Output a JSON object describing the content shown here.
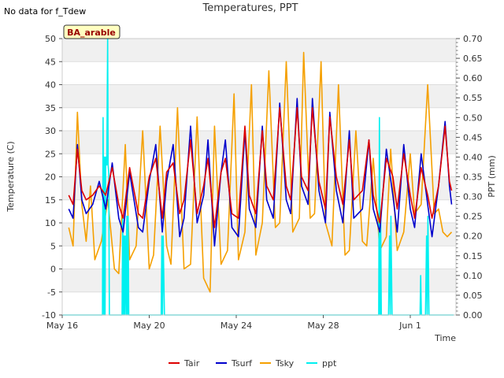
{
  "chart_data": {
    "type": "line",
    "title": "Temperatures, PPT",
    "note": "No data for f_Tdew",
    "site_label": "BA_arable",
    "xlabel": "Time",
    "ylabel_left": "Temperature (C)",
    "ylabel_right": "PPT (mm)",
    "ylim_left": [
      -10,
      50
    ],
    "ylim_right": [
      0.0,
      0.7
    ],
    "yticks_left": [
      "-10",
      "-5",
      "0",
      "5",
      "10",
      "15",
      "20",
      "25",
      "30",
      "35",
      "40",
      "45",
      "50"
    ],
    "yticks_right": [
      "0.00",
      "0.05",
      "0.10",
      "0.15",
      "0.20",
      "0.25",
      "0.30",
      "0.35",
      "0.40",
      "0.45",
      "0.50",
      "0.55",
      "0.60",
      "0.65",
      "0.70"
    ],
    "xticks": [
      {
        "day": 0,
        "label": "May 16"
      },
      {
        "day": 4,
        "label": "May 20"
      },
      {
        "day": 8,
        "label": "May 24"
      },
      {
        "day": 12,
        "label": "May 28"
      },
      {
        "day": 16,
        "label": "Jun 1"
      }
    ],
    "xlim_days": [
      0,
      18.1
    ],
    "grid": "horizontal bands",
    "legend_position": "bottom-center",
    "series": [
      {
        "name": "Tair",
        "color": "#dd0000",
        "axis": "left",
        "x": [
          0.3,
          0.5,
          0.7,
          0.9,
          1.1,
          1.4,
          1.7,
          2.0,
          2.3,
          2.6,
          2.8,
          3.1,
          3.5,
          3.7,
          4.0,
          4.3,
          4.6,
          4.8,
          5.1,
          5.4,
          5.6,
          5.9,
          6.2,
          6.5,
          6.7,
          7.0,
          7.3,
          7.5,
          7.8,
          8.1,
          8.4,
          8.6,
          8.9,
          9.2,
          9.4,
          9.7,
          10.0,
          10.3,
          10.5,
          10.8,
          11.0,
          11.3,
          11.5,
          11.8,
          12.1,
          12.3,
          12.6,
          12.9,
          13.2,
          13.4,
          13.8,
          14.1,
          14.3,
          14.6,
          14.9,
          15.2,
          15.4,
          15.7,
          16.0,
          16.2,
          16.5,
          16.8,
          17.0,
          17.3,
          17.6,
          17.8,
          17.9
        ],
        "y": [
          16,
          14,
          26,
          17,
          15,
          16,
          18,
          16,
          22,
          14,
          11,
          22,
          12,
          11,
          20,
          24,
          11,
          21,
          23,
          12,
          15,
          28,
          12,
          18,
          24,
          9,
          21,
          24,
          12,
          11,
          31,
          16,
          12,
          30,
          18,
          15,
          35,
          18,
          15,
          35,
          20,
          17,
          35,
          19,
          13,
          33,
          20,
          14,
          28,
          15,
          17,
          28,
          16,
          10,
          24,
          20,
          13,
          25,
          16,
          11,
          22,
          16,
          11,
          18,
          31,
          19,
          17
        ]
      },
      {
        "name": "Tsurf",
        "color": "#0000cc",
        "axis": "left",
        "x": [
          0.3,
          0.5,
          0.7,
          0.9,
          1.1,
          1.4,
          1.7,
          2.0,
          2.3,
          2.6,
          2.8,
          3.1,
          3.5,
          3.7,
          4.0,
          4.3,
          4.6,
          4.8,
          5.1,
          5.4,
          5.6,
          5.9,
          6.2,
          6.5,
          6.7,
          7.0,
          7.3,
          7.5,
          7.8,
          8.1,
          8.4,
          8.6,
          8.9,
          9.2,
          9.4,
          9.7,
          10.0,
          10.3,
          10.5,
          10.8,
          11.0,
          11.3,
          11.5,
          11.8,
          12.1,
          12.3,
          12.6,
          12.9,
          13.2,
          13.4,
          13.8,
          14.1,
          14.3,
          14.6,
          14.9,
          15.2,
          15.4,
          15.7,
          16.0,
          16.2,
          16.5,
          16.8,
          17.0,
          17.3,
          17.6,
          17.8,
          17.9
        ],
        "y": [
          13,
          11,
          27,
          15,
          12,
          14,
          19,
          13,
          23,
          11,
          8,
          21,
          9,
          8,
          19,
          27,
          8,
          19,
          27,
          7,
          11,
          31,
          10,
          16,
          28,
          5,
          21,
          28,
          9,
          7,
          30,
          13,
          9,
          31,
          15,
          11,
          36,
          15,
          12,
          37,
          18,
          14,
          37,
          17,
          10,
          34,
          17,
          10,
          30,
          11,
          13,
          28,
          13,
          8,
          26,
          16,
          8,
          27,
          13,
          9,
          25,
          14,
          7,
          18,
          32,
          18,
          14
        ]
      },
      {
        "name": "Tsky",
        "color": "#f5a000",
        "axis": "left",
        "x": [
          0.3,
          0.5,
          0.7,
          0.9,
          1.1,
          1.3,
          1.5,
          1.8,
          2.1,
          2.4,
          2.6,
          2.9,
          3.1,
          3.4,
          3.7,
          4.0,
          4.2,
          4.5,
          4.8,
          5.0,
          5.3,
          5.6,
          5.9,
          6.2,
          6.5,
          6.8,
          7.0,
          7.3,
          7.6,
          7.9,
          8.1,
          8.4,
          8.7,
          8.9,
          9.2,
          9.5,
          9.8,
          10.0,
          10.3,
          10.6,
          10.9,
          11.1,
          11.4,
          11.6,
          11.9,
          12.1,
          12.4,
          12.7,
          13.0,
          13.2,
          13.5,
          13.8,
          14.0,
          14.3,
          14.6,
          14.9,
          15.1,
          15.4,
          15.7,
          16.0,
          16.2,
          16.5,
          16.8,
          17.1,
          17.3,
          17.5,
          17.7,
          17.9
        ],
        "y": [
          9,
          5,
          34,
          14,
          6,
          18,
          2,
          6,
          15,
          0,
          -1,
          27,
          2,
          5,
          30,
          0,
          3,
          31,
          5,
          1,
          35,
          0,
          1,
          33,
          -2,
          -5,
          31,
          1,
          4,
          38,
          2,
          8,
          40,
          3,
          10,
          43,
          9,
          10,
          45,
          8,
          11,
          47,
          11,
          12,
          45,
          10,
          5,
          40,
          3,
          4,
          30,
          6,
          5,
          24,
          4,
          7,
          26,
          4,
          8,
          25,
          12,
          14,
          40,
          12,
          13,
          8,
          7,
          8
        ]
      },
      {
        "name": "ppt",
        "color": "#00f0f0",
        "axis": "right",
        "x": [
          0.0,
          1.85,
          1.88,
          1.91,
          1.94,
          1.97,
          2.0,
          2.05,
          2.09,
          2.11,
          2.14,
          2.17,
          2.2,
          2.35,
          2.4,
          2.75,
          2.78,
          2.81,
          2.84,
          2.87,
          2.9,
          2.94,
          2.97,
          3.0,
          3.03,
          3.06,
          4.5,
          4.55,
          4.58,
          4.61,
          4.64,
          4.7,
          14.5,
          14.55,
          14.58,
          14.61,
          14.64,
          14.67,
          14.72,
          15.0,
          15.05,
          15.08,
          15.11,
          15.16,
          16.4,
          16.45,
          16.48,
          16.51,
          16.56,
          16.7,
          16.75,
          16.78,
          16.81,
          16.86,
          18.0
        ],
        "y": [
          0,
          0,
          0.5,
          0,
          0.4,
          0,
          0.4,
          0.38,
          0.7,
          0.38,
          0.36,
          0,
          0,
          0,
          0,
          0,
          0.25,
          0,
          0.2,
          0,
          0.2,
          0,
          0.25,
          0,
          0.25,
          0,
          0,
          0,
          0.2,
          0,
          0.2,
          0,
          0,
          0,
          0.5,
          0,
          0.25,
          0,
          0,
          0,
          0.2,
          0,
          0.25,
          0,
          0,
          0,
          0.1,
          0,
          0,
          0,
          0.2,
          0,
          0.25,
          0,
          0
        ]
      }
    ]
  }
}
